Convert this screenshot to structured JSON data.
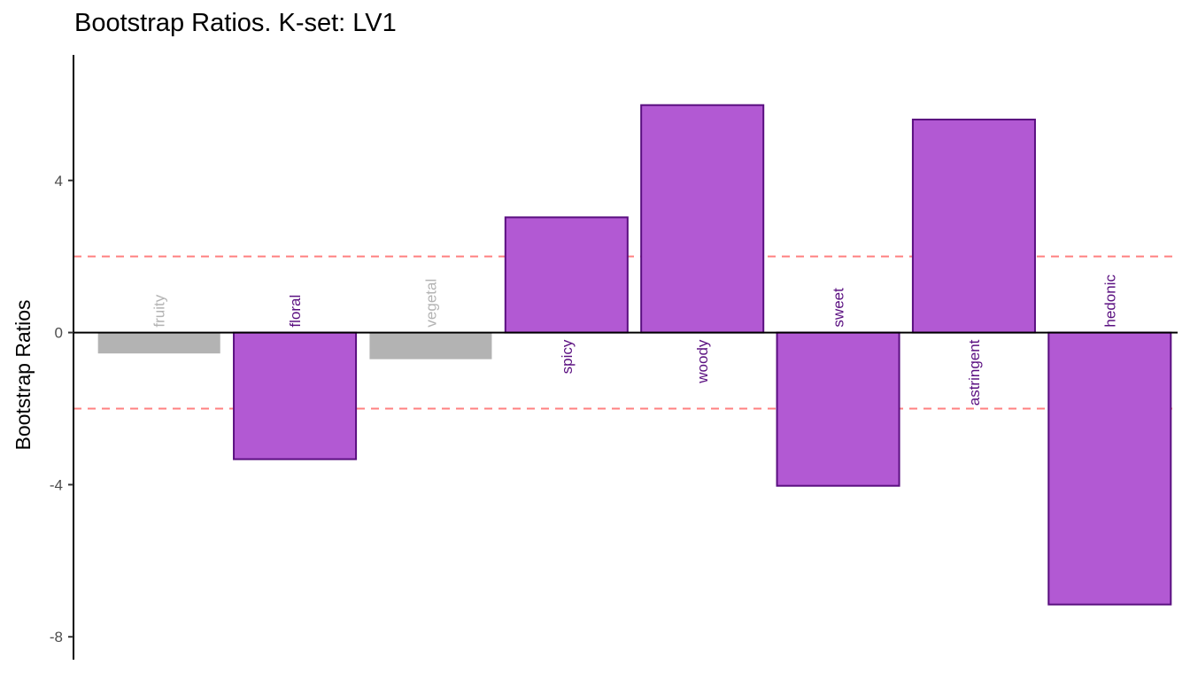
{
  "chart_data": {
    "type": "bar",
    "title": "Bootstrap Ratios. K-set: LV1",
    "xlabel": "",
    "ylabel": "Bootstrap Ratios",
    "categories": [
      "fruity",
      "floral",
      "vegetal",
      "spicy",
      "woody",
      "sweet",
      "astringent",
      "hedonic"
    ],
    "values": [
      -0.55,
      -3.33,
      -0.7,
      3.03,
      5.98,
      -4.03,
      5.6,
      -7.15
    ],
    "significant": [
      false,
      true,
      false,
      true,
      true,
      true,
      true,
      true
    ],
    "yticks": [
      -8,
      -4,
      0,
      4
    ],
    "ytick_labels": [
      "-8",
      "-4",
      "0",
      "4"
    ],
    "ylim": [
      -8.6,
      7.3
    ],
    "threshold_lines": [
      2,
      -2
    ],
    "grid": false,
    "colors": {
      "significant_fill": "#b259d3",
      "significant_border": "#5a0f80",
      "significant_label": "#5a0f80",
      "nonsignificant_fill": "#b3b3b3",
      "nonsignificant_label": "#b3b3b3",
      "threshold_line": "#ff8080",
      "axis": "#000000"
    }
  }
}
